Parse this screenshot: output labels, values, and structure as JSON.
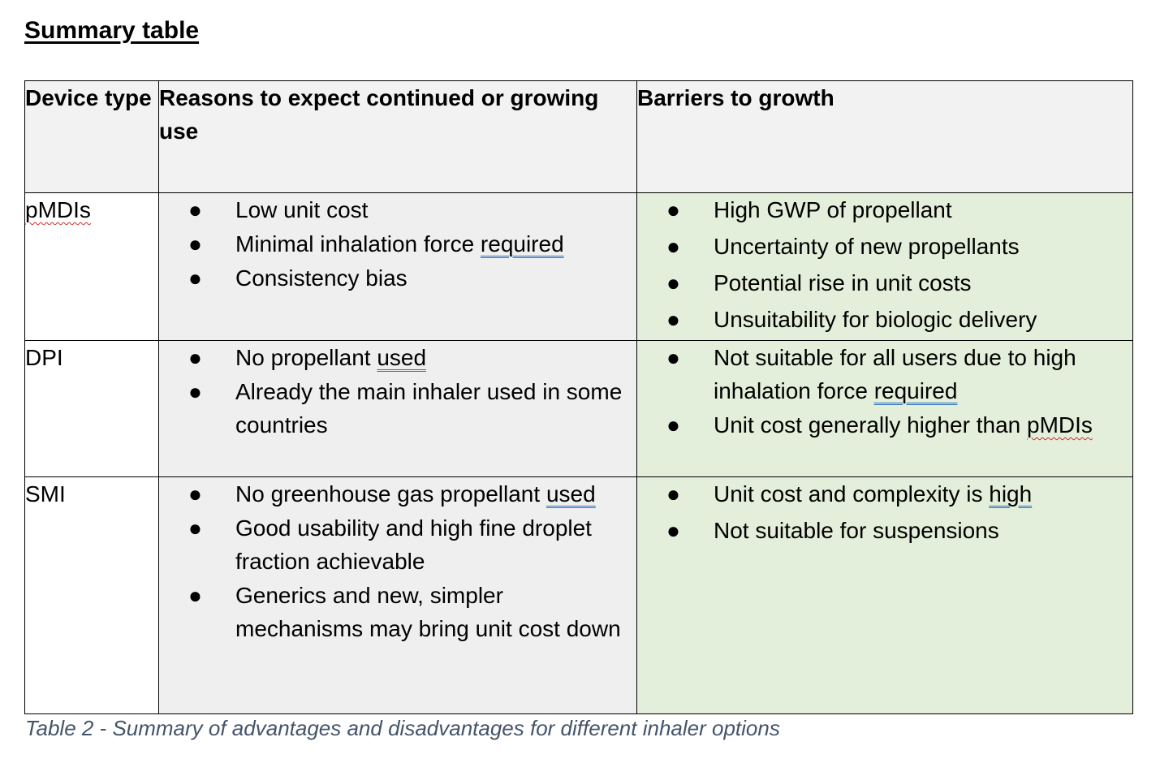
{
  "heading": "Summary table",
  "table": {
    "headers": {
      "device_type": "Device type",
      "reasons": "Reasons to expect continued or growing use",
      "barriers": "Barriers to growth"
    },
    "rows": [
      {
        "device": "pMDIs",
        "reasons": [
          "Low unit cost",
          "Minimal inhalation force ",
          "Consistency bias"
        ],
        "reasons_tail": [
          "",
          "required",
          ""
        ],
        "barriers": [
          "High GWP of propellant",
          "Uncertainty of new propellants",
          "Potential rise in unit costs",
          "Unsuitability for biologic delivery"
        ]
      },
      {
        "device": "DPI",
        "reasons": [
          "No propellant ",
          "Already the main inhaler used in some countries"
        ],
        "reasons_tail": [
          "used",
          ""
        ],
        "barriers": [
          "Not suitable for all users due to high inhalation force ",
          "Unit cost generally higher than "
        ],
        "barriers_tail": [
          "required",
          "pMDIs"
        ]
      },
      {
        "device": "SMI",
        "reasons": [
          "No greenhouse gas propellant ",
          "Good usability and high fine droplet fraction achievable",
          "Generics and new, simpler mechanisms may bring unit cost down"
        ],
        "reasons_tail": [
          "used",
          "",
          ""
        ],
        "barriers": [
          "Unit cost and complexity is ",
          "Not suitable for suspensions"
        ],
        "barriers_tail": [
          "high",
          ""
        ]
      }
    ]
  },
  "caption": "Table 2 - Summary of advantages and disadvantages for different inhaler options"
}
